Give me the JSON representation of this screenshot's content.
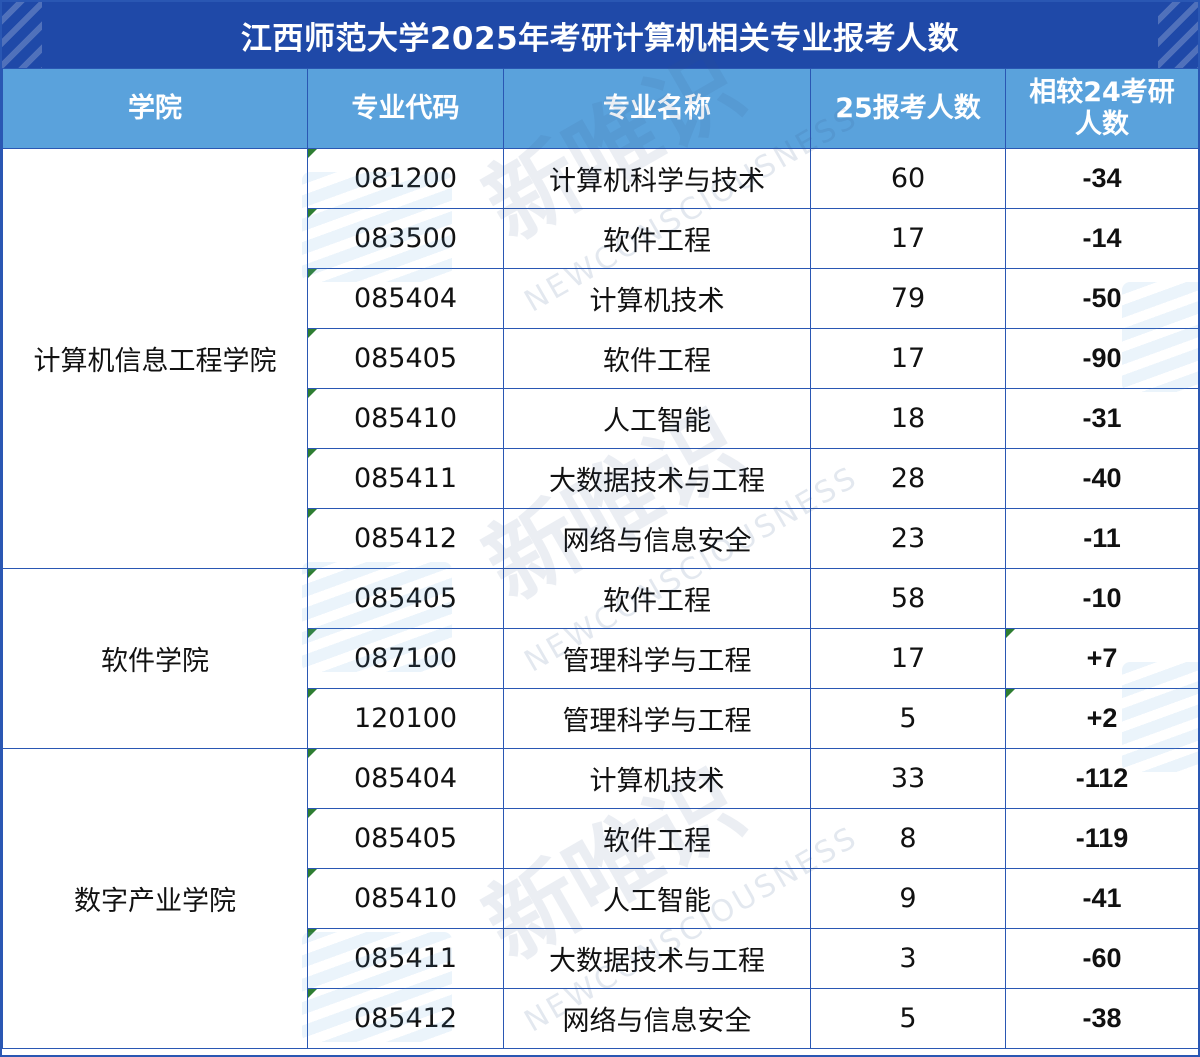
{
  "title": "江西师范大学2025年考研计算机相关专业报考人数",
  "watermark": {
    "cn": "新唯识",
    "en": "NEWCONSCIOUSNESS"
  },
  "colors": {
    "title_bg": "#1f49a8",
    "header_bg": "#5aa2dc",
    "border": "#2a57b3",
    "decrease": "#2e7d32",
    "increase": "#e02020"
  },
  "headers": {
    "college": "学院",
    "code": "专业代码",
    "name": "专业名称",
    "applicants": "25报考人数",
    "change": "相较24考研人数"
  },
  "groups": [
    {
      "college": "计算机信息工程学院",
      "rows": [
        {
          "code": "081200",
          "name": "计算机科学与技术",
          "applicants": "60",
          "change": "-34"
        },
        {
          "code": "083500",
          "name": "软件工程",
          "applicants": "17",
          "change": "-14"
        },
        {
          "code": "085404",
          "name": "计算机技术",
          "applicants": "79",
          "change": "-50"
        },
        {
          "code": "085405",
          "name": "软件工程",
          "applicants": "17",
          "change": "-90"
        },
        {
          "code": "085410",
          "name": "人工智能",
          "applicants": "18",
          "change": "-31"
        },
        {
          "code": "085411",
          "name": "大数据技术与工程",
          "applicants": "28",
          "change": "-40"
        },
        {
          "code": "085412",
          "name": "网络与信息安全",
          "applicants": "23",
          "change": "-11"
        }
      ]
    },
    {
      "college": "软件学院",
      "rows": [
        {
          "code": "085405",
          "name": "软件工程",
          "applicants": "58",
          "change": "-10"
        },
        {
          "code": "087100",
          "name": "管理科学与工程",
          "applicants": "17",
          "change": "+7"
        },
        {
          "code": "120100",
          "name": "管理科学与工程",
          "applicants": "5",
          "change": "+2"
        }
      ]
    },
    {
      "college": "数字产业学院",
      "rows": [
        {
          "code": "085404",
          "name": "计算机技术",
          "applicants": "33",
          "change": "-112"
        },
        {
          "code": "085405",
          "name": "软件工程",
          "applicants": "8",
          "change": "-119"
        },
        {
          "code": "085410",
          "name": "人工智能",
          "applicants": "9",
          "change": "-41"
        },
        {
          "code": "085411",
          "name": "大数据技术与工程",
          "applicants": "3",
          "change": "-60"
        },
        {
          "code": "085412",
          "name": "网络与信息安全",
          "applicants": "5",
          "change": "-38"
        }
      ]
    }
  ]
}
